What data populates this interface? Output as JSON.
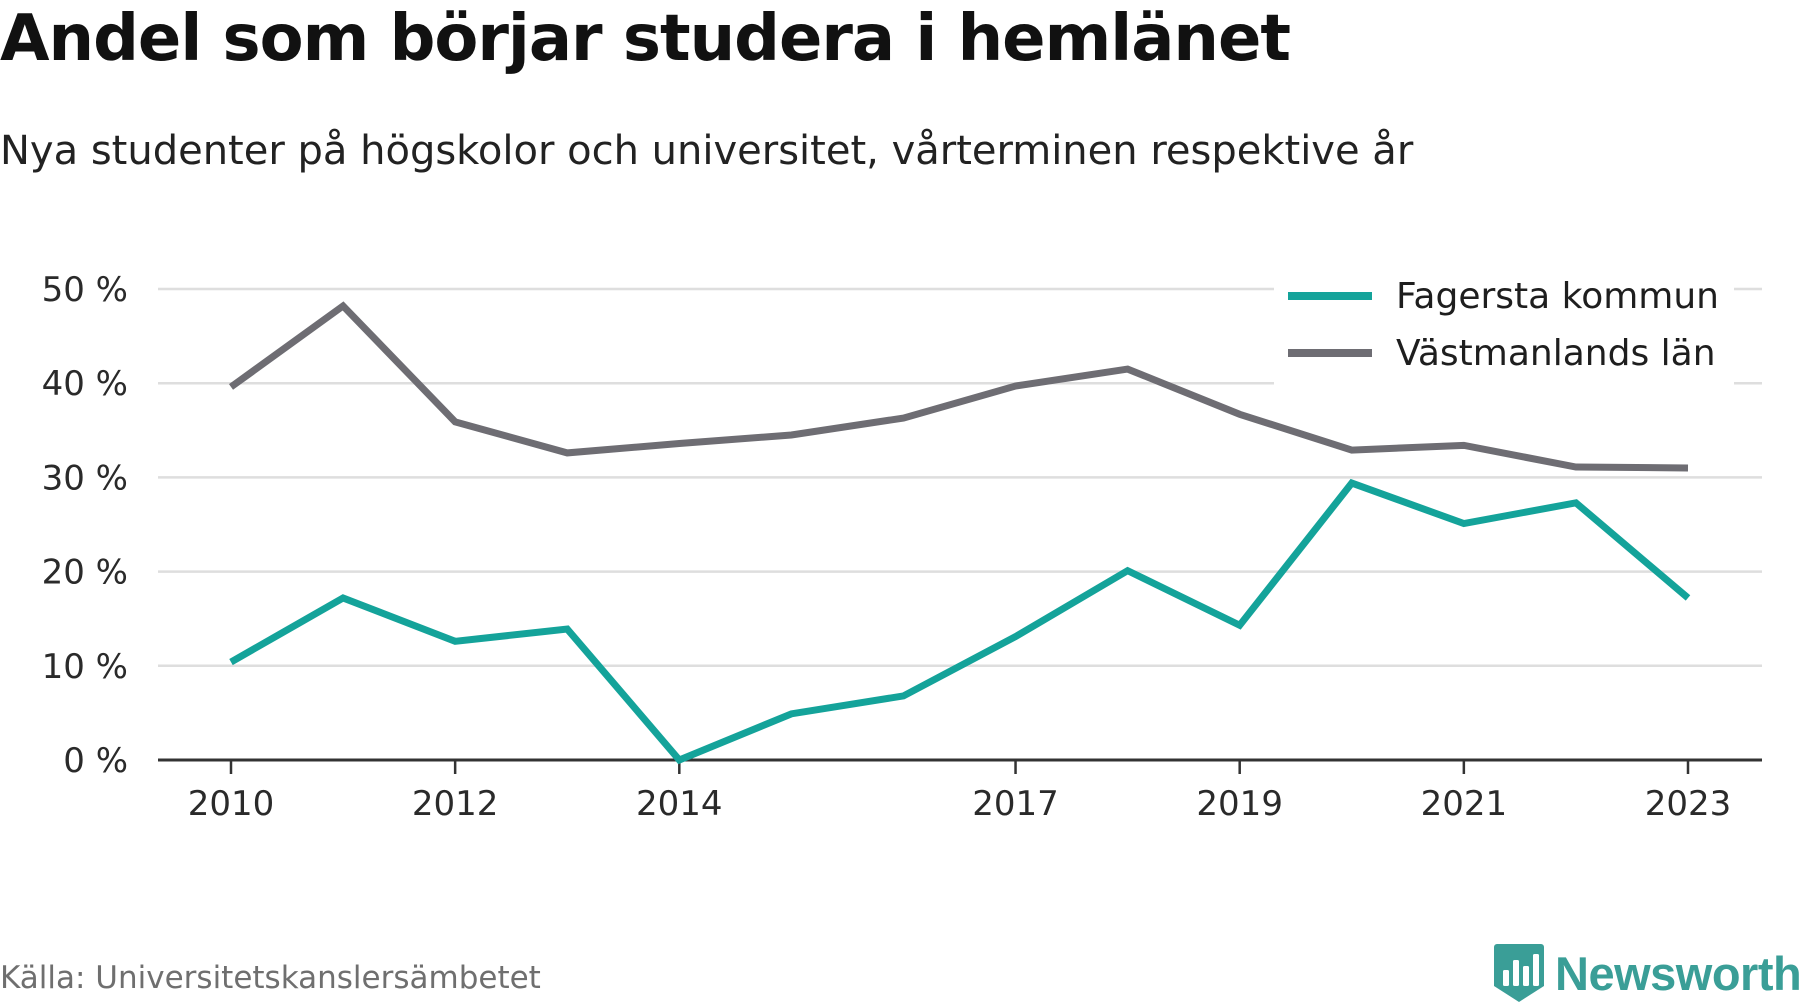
{
  "title": "Andel som börjar studera i hemlänet",
  "subtitle": "Nya studenter på högskolor och universitet, vårterminen respektive år",
  "source": "Källa: Universitetskanslersämbetet",
  "brand": "Newsworthy",
  "colors": {
    "fagersta": "#14a39a",
    "vastmanland": "#6e6d73",
    "grid": "#dedede",
    "axis": "#333333",
    "brand": "#3a9e97"
  },
  "chart_data": {
    "type": "line",
    "x": [
      2010,
      2011,
      2012,
      2013,
      2014,
      2015,
      2016,
      2017,
      2018,
      2019,
      2020,
      2021,
      2022,
      2023
    ],
    "x_tick_labels": [
      "2010",
      "2012",
      "2014",
      "2017",
      "2019",
      "2021",
      "2023"
    ],
    "y_tick_labels": [
      "0 %",
      "10 %",
      "20 %",
      "30 %",
      "40 %",
      "50 %"
    ],
    "ylim": [
      0,
      50
    ],
    "y_ticks": [
      0,
      10,
      20,
      30,
      40,
      50
    ],
    "grid": true,
    "legend_position": "top-right",
    "xlabel": "",
    "ylabel": "",
    "series": [
      {
        "name": "Fagersta kommun",
        "color": "#14a39a",
        "values": [
          10.4,
          17.2,
          12.6,
          13.9,
          0.0,
          4.9,
          6.8,
          13.1,
          20.1,
          14.3,
          29.4,
          25.1,
          27.3,
          17.2
        ]
      },
      {
        "name": "Västmanlands län",
        "color": "#6e6d73",
        "values": [
          39.6,
          48.2,
          35.9,
          32.6,
          33.6,
          34.5,
          36.3,
          39.7,
          41.5,
          36.7,
          32.9,
          33.4,
          31.1,
          31.0
        ]
      }
    ]
  }
}
